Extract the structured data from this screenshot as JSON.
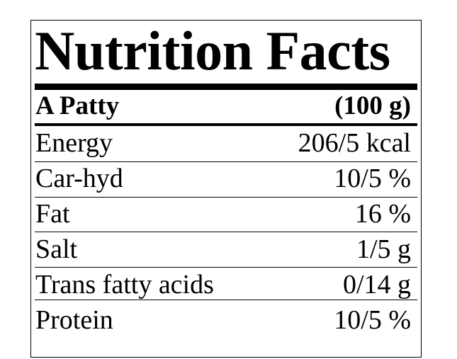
{
  "label": {
    "title": "Nutrition Facts",
    "serving": {
      "name": "A Patty",
      "amount": "(100 g)"
    },
    "nutrients": [
      {
        "name": "Energy",
        "value": "206/5 kcal"
      },
      {
        "name": "Car-hyd",
        "value": "10/5 %"
      },
      {
        "name": "Fat",
        "value": "16 %"
      },
      {
        "name": "Salt",
        "value": "1/5 g"
      },
      {
        "name": "Trans fatty acids",
        "value": "0/14 g"
      },
      {
        "name": "Protein",
        "value": "10/5 %"
      }
    ]
  }
}
